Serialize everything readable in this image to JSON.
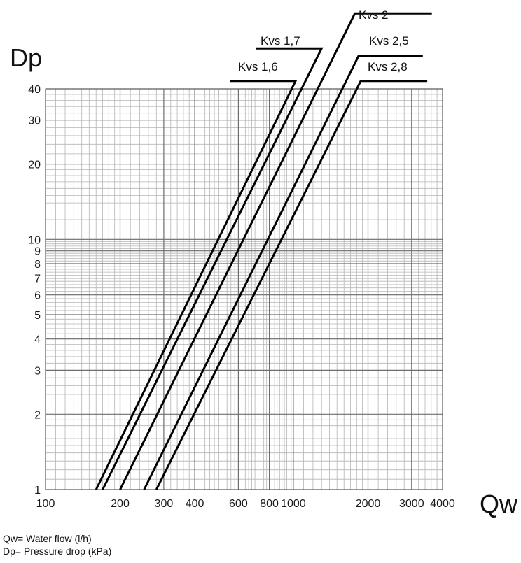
{
  "chart_data": {
    "type": "line",
    "title": "",
    "xlabel": "Qw",
    "ylabel": "Dp",
    "x_scale": "log",
    "y_scale": "log",
    "xlim": [
      100,
      4000
    ],
    "ylim": [
      1,
      40
    ],
    "grid": true,
    "x_ticks": [
      {
        "value": 100,
        "label": "100"
      },
      {
        "value": 200,
        "label": "200"
      },
      {
        "value": 300,
        "label": "300"
      },
      {
        "value": 400,
        "label": "400"
      },
      {
        "value": 600,
        "label": "600"
      },
      {
        "value": 800,
        "label": "800"
      },
      {
        "value": 1000,
        "label": "1000"
      },
      {
        "value": 2000,
        "label": "2000"
      },
      {
        "value": 3000,
        "label": "3000"
      },
      {
        "value": 4000,
        "label": "4000"
      }
    ],
    "y_ticks": [
      {
        "value": 1,
        "label": "1"
      },
      {
        "value": 2,
        "label": "2"
      },
      {
        "value": 3,
        "label": "3"
      },
      {
        "value": 4,
        "label": "4"
      },
      {
        "value": 5,
        "label": "5"
      },
      {
        "value": 6,
        "label": "6"
      },
      {
        "value": 7,
        "label": "7"
      },
      {
        "value": 8,
        "label": "8"
      },
      {
        "value": 9,
        "label": "9"
      },
      {
        "value": 10,
        "label": "10"
      },
      {
        "value": 20,
        "label": "20"
      },
      {
        "value": 30,
        "label": "30"
      },
      {
        "value": 40,
        "label": "40"
      }
    ],
    "series": [
      {
        "name": "Kvs 1,6",
        "line_color": "#000000",
        "x": [
          160,
          1020
        ],
        "y": [
          1,
          43
        ]
      },
      {
        "name": "Kvs 1,7",
        "line_color": "#000000",
        "x": [
          170,
          1300
        ],
        "y": [
          1,
          58
        ]
      },
      {
        "name": "Kvs 2",
        "line_color": "#000000",
        "x": [
          200,
          1770
        ],
        "y": [
          1,
          80
        ]
      },
      {
        "name": "Kvs 2,5",
        "line_color": "#000000",
        "x": [
          250,
          1830
        ],
        "y": [
          1,
          54
        ]
      },
      {
        "name": "Kvs 2,8",
        "line_color": "#000000",
        "x": [
          280,
          1870
        ],
        "y": [
          1,
          43
        ]
      }
    ]
  },
  "notes": {
    "qw": "Qw= Water flow (l/h)",
    "dp": "Dp= Pressure drop (kPa)"
  }
}
